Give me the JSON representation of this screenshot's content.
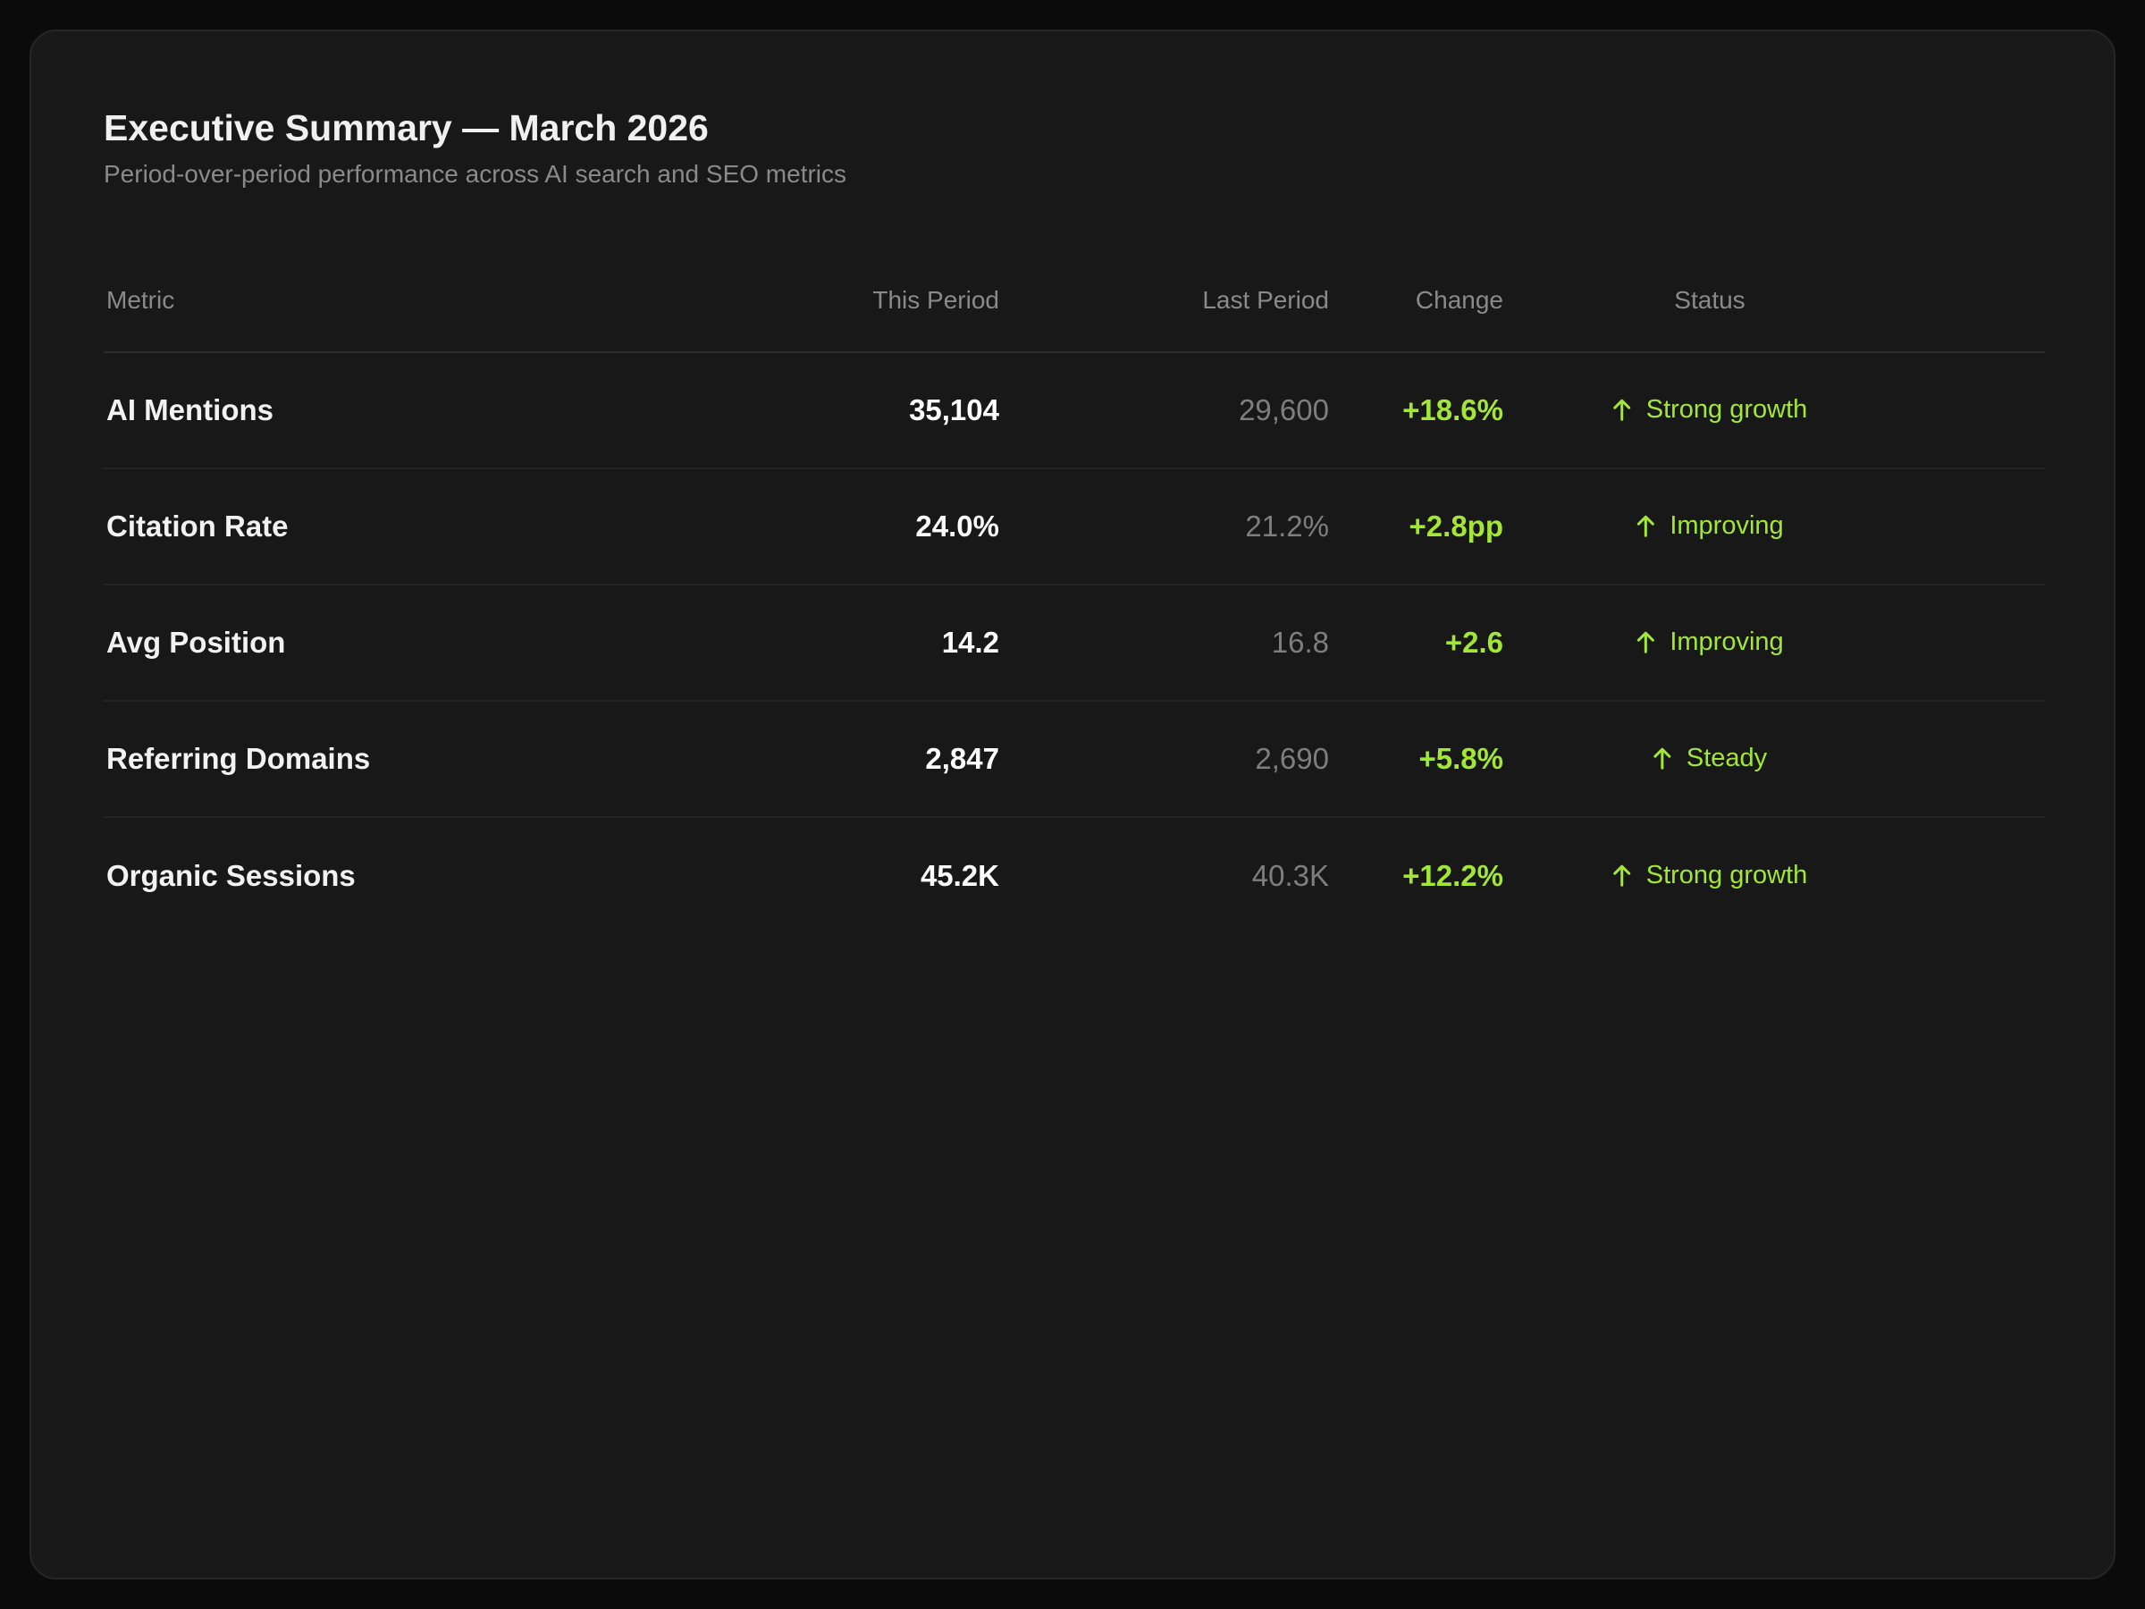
{
  "header": {
    "title": "Executive Summary — March 2026",
    "subtitle": "Period-over-period performance across AI search and SEO metrics"
  },
  "table": {
    "columns": {
      "metric": "Metric",
      "this_period": "This Period",
      "last_period": "Last Period",
      "change": "Change",
      "status": "Status"
    },
    "rows": [
      {
        "metric": "AI Mentions",
        "this_period": "35,104",
        "last_period": "29,600",
        "change": "+18.6%",
        "status": "Strong growth",
        "status_icon": "arrow-up-icon"
      },
      {
        "metric": "Citation Rate",
        "this_period": "24.0%",
        "last_period": "21.2%",
        "change": "+2.8pp",
        "status": "Improving",
        "status_icon": "arrow-up-icon"
      },
      {
        "metric": "Avg Position",
        "this_period": "14.2",
        "last_period": "16.8",
        "change": "+2.6",
        "status": "Improving",
        "status_icon": "arrow-up-icon"
      },
      {
        "metric": "Referring Domains",
        "this_period": "2,847",
        "last_period": "2,690",
        "change": "+5.8%",
        "status": "Steady",
        "status_icon": "arrow-up-icon"
      },
      {
        "metric": "Organic Sessions",
        "this_period": "45.2K",
        "last_period": "40.3K",
        "change": "+12.2%",
        "status": "Strong growth",
        "status_icon": "arrow-up-icon"
      }
    ]
  },
  "colors": {
    "background": "#0b0b0b",
    "card": "#181818",
    "positive": "#a3e635",
    "muted_text": "#8a8a8a"
  }
}
